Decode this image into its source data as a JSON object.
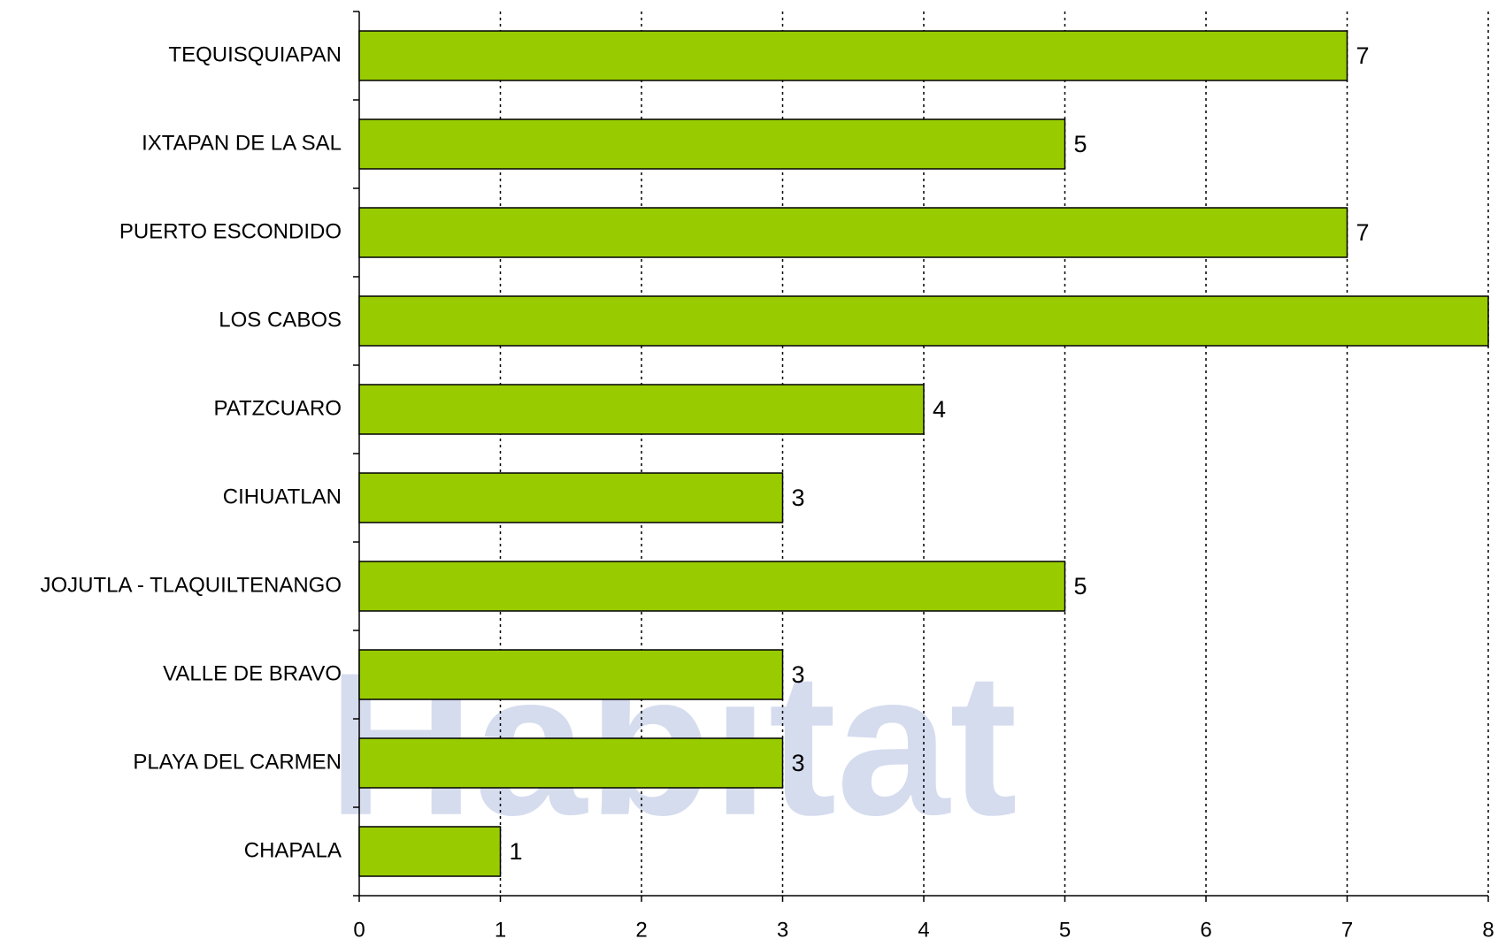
{
  "chart_data": {
    "type": "bar",
    "orientation": "horizontal",
    "watermark": "Hábitat",
    "categories": [
      "TEQUISQUIAPAN",
      "IXTAPAN DE LA SAL",
      "PUERTO ESCONDIDO",
      "LOS CABOS",
      "PATZCUARO",
      "CIHUATLAN",
      "JOJUTLA - TLAQUILTENANGO",
      "VALLE DE BRAVO",
      "PLAYA DEL CARMEN",
      "CHAPALA"
    ],
    "values": [
      7,
      5,
      7,
      8,
      4,
      3,
      5,
      3,
      3,
      1
    ],
    "color": "#99cc00",
    "xlim": [
      0,
      8
    ],
    "xticks": [
      0,
      1,
      2,
      3,
      4,
      5,
      6,
      7,
      8
    ],
    "grid": true
  }
}
